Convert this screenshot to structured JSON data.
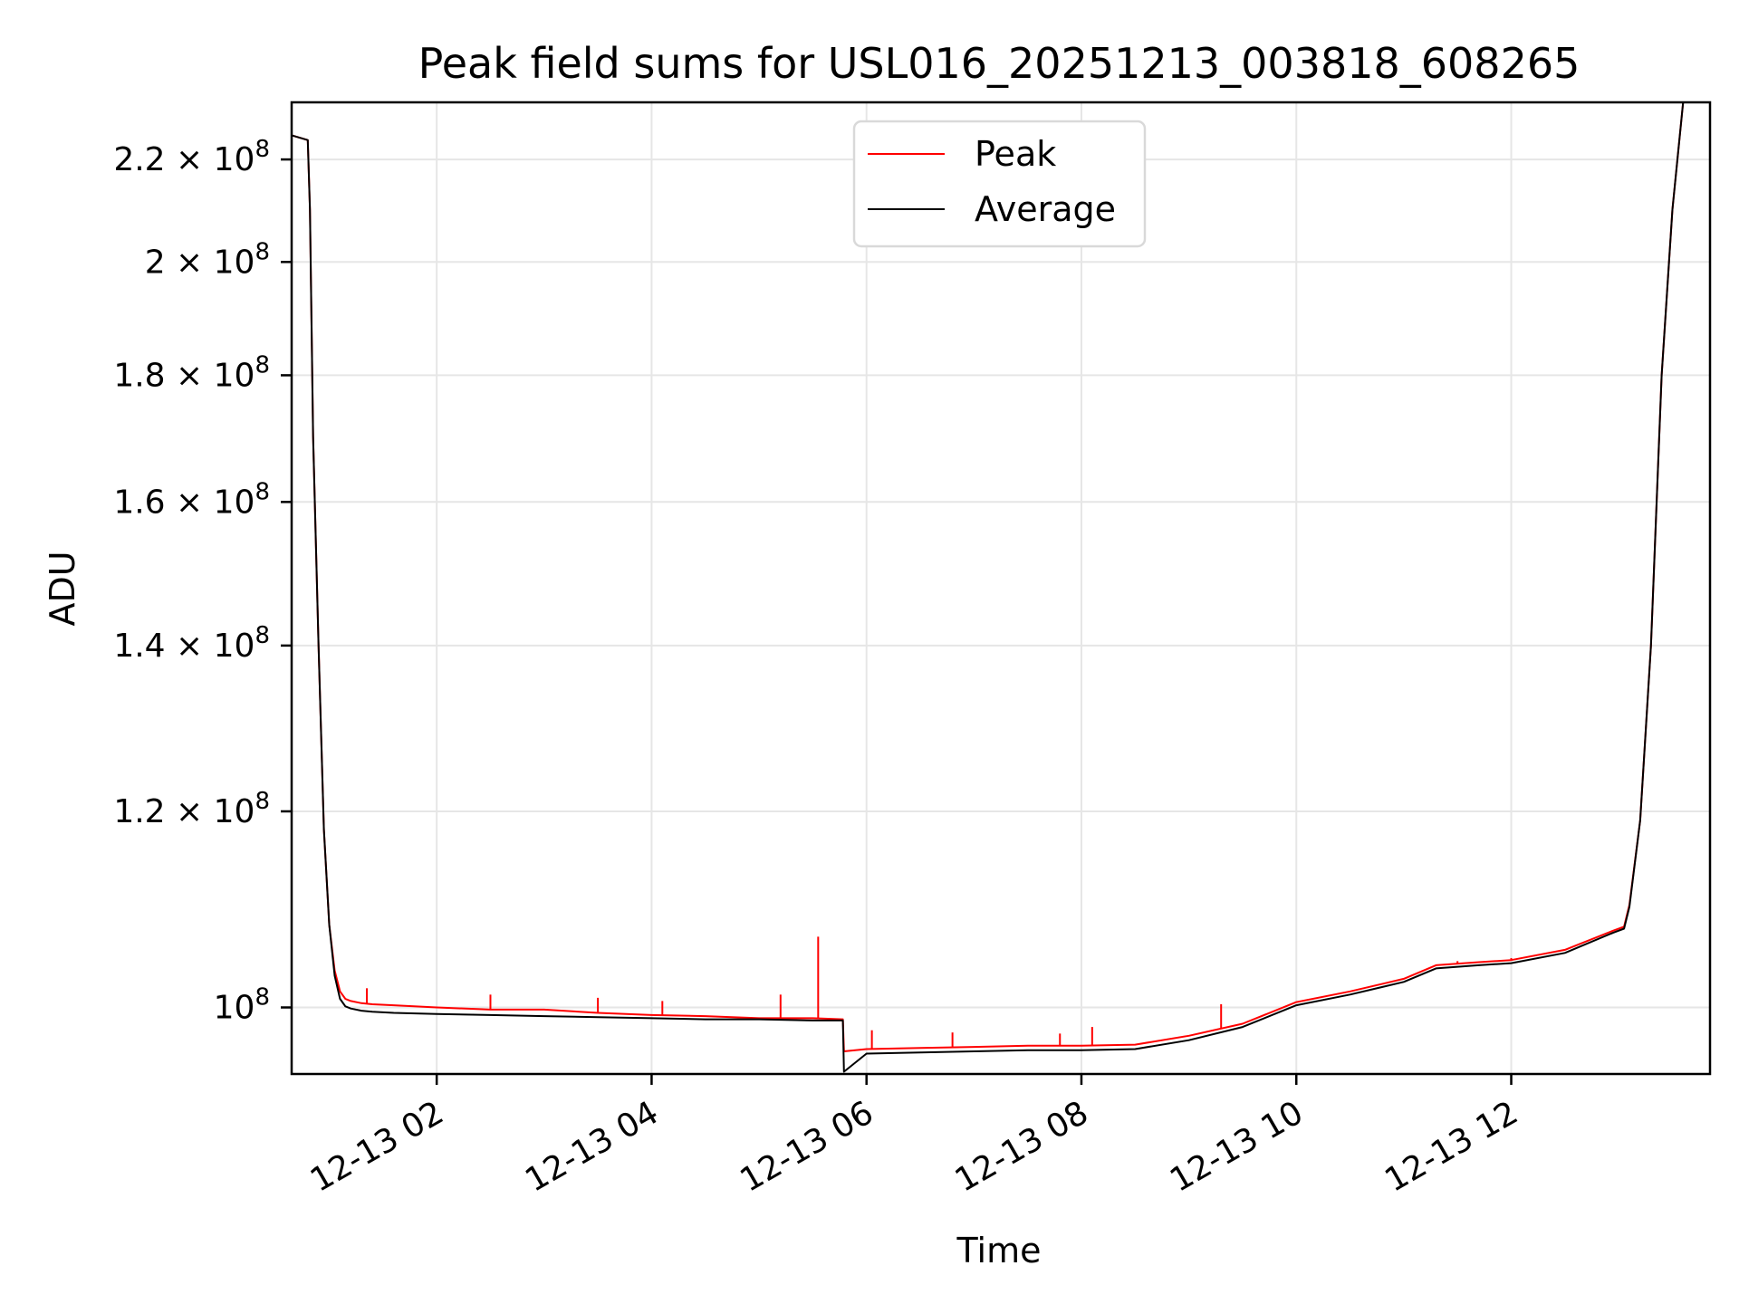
{
  "chart_data": {
    "type": "line",
    "title": "Peak field sums for USL016_20251213_003818_608265",
    "xlabel": "Time",
    "ylabel": "ADU",
    "yscale": "log",
    "ylim": [
      94000000,
      232000000
    ],
    "xlim_hours": [
      0.65,
      13.85
    ],
    "grid": true,
    "legend_position": "upper center",
    "x_ticks": [
      {
        "hour": 2,
        "label": "12-13 02"
      },
      {
        "hour": 4,
        "label": "12-13 04"
      },
      {
        "hour": 6,
        "label": "12-13 06"
      },
      {
        "hour": 8,
        "label": "12-13 08"
      },
      {
        "hour": 10,
        "label": "12-13 10"
      },
      {
        "hour": 12,
        "label": "12-13 12"
      }
    ],
    "y_ticks": [
      {
        "value": 100000000,
        "mantissa": "",
        "base": "10",
        "exp": "8"
      },
      {
        "value": 120000000,
        "mantissa": "1.2",
        "base": "10",
        "exp": "8"
      },
      {
        "value": 140000000,
        "mantissa": "1.4",
        "base": "10",
        "exp": "8"
      },
      {
        "value": 160000000,
        "mantissa": "1.6",
        "base": "10",
        "exp": "8"
      },
      {
        "value": 180000000,
        "mantissa": "1.8",
        "base": "10",
        "exp": "8"
      },
      {
        "value": 200000000,
        "mantissa": "2",
        "base": "10",
        "exp": "8"
      },
      {
        "value": 220000000,
        "mantissa": "2.2",
        "base": "10",
        "exp": "8"
      }
    ],
    "series": [
      {
        "name": "Peak",
        "color": "#ff0000",
        "x": [
          0.65,
          0.8,
          0.82,
          0.85,
          0.9,
          0.95,
          1.0,
          1.05,
          1.1,
          1.15,
          1.2,
          1.3,
          1.4,
          1.6,
          2.0,
          2.5,
          3.0,
          3.5,
          4.0,
          4.5,
          5.0,
          5.5,
          5.78,
          5.79,
          6.0,
          6.5,
          7.0,
          7.5,
          8.0,
          8.5,
          9.0,
          9.5,
          10.0,
          10.5,
          11.0,
          11.3,
          11.7,
          12.0,
          12.5,
          12.95,
          13.05,
          13.1,
          13.2,
          13.3,
          13.4,
          13.5,
          13.6
        ],
        "y": [
          225000000,
          224000000,
          210000000,
          170000000,
          140000000,
          118000000,
          108000000,
          103500000,
          101500000,
          100800000,
          100600000,
          100400000,
          100300000,
          100200000,
          100000000,
          99800000,
          99800000,
          99500000,
          99300000,
          99200000,
          99000000,
          99000000,
          98900000,
          96000000,
          96200000,
          96300000,
          96400000,
          96500000,
          96500000,
          96600000,
          97400000,
          98500000,
          100500000,
          101500000,
          102700000,
          104000000,
          104300000,
          104500000,
          105500000,
          107400000,
          107800000,
          110000000,
          119000000,
          140000000,
          180000000,
          210000000,
          232000000
        ]
      },
      {
        "name": "Average",
        "color": "#000000",
        "x": [
          0.65,
          0.8,
          0.82,
          0.85,
          0.9,
          0.95,
          1.0,
          1.05,
          1.1,
          1.15,
          1.2,
          1.3,
          1.4,
          1.6,
          2.0,
          2.5,
          3.0,
          3.5,
          4.0,
          4.5,
          5.0,
          5.5,
          5.78,
          5.79,
          6.0,
          6.5,
          7.0,
          7.5,
          8.0,
          8.5,
          9.0,
          9.5,
          10.0,
          10.5,
          11.0,
          11.3,
          11.7,
          12.0,
          12.5,
          12.95,
          13.05,
          13.1,
          13.2,
          13.3,
          13.4,
          13.5,
          13.6
        ],
        "y": [
          225000000,
          224000000,
          210000000,
          170000000,
          140000000,
          118000000,
          108000000,
          103000000,
          100800000,
          100100000,
          99900000,
          99700000,
          99600000,
          99500000,
          99400000,
          99300000,
          99200000,
          99100000,
          99000000,
          98900000,
          98900000,
          98800000,
          98800000,
          94200000,
          95800000,
          95900000,
          96000000,
          96100000,
          96100000,
          96200000,
          97000000,
          98200000,
          100200000,
          101200000,
          102400000,
          103700000,
          104000000,
          104200000,
          105200000,
          107200000,
          107600000,
          109800000,
          119000000,
          140000000,
          180000000,
          210000000,
          232000000
        ]
      }
    ],
    "spikes": [
      {
        "series": "Peak",
        "x": 1.35,
        "y": 101800000
      },
      {
        "series": "Peak",
        "x": 2.5,
        "y": 101200000
      },
      {
        "series": "Peak",
        "x": 3.5,
        "y": 100900000
      },
      {
        "series": "Peak",
        "x": 4.1,
        "y": 100600000
      },
      {
        "series": "Peak",
        "x": 5.2,
        "y": 101200000
      },
      {
        "series": "Peak",
        "x": 5.55,
        "y": 106800000
      },
      {
        "series": "Peak",
        "x": 6.05,
        "y": 97900000
      },
      {
        "series": "Peak",
        "x": 6.8,
        "y": 97700000
      },
      {
        "series": "Peak",
        "x": 7.8,
        "y": 97600000
      },
      {
        "series": "Peak",
        "x": 8.1,
        "y": 98200000
      },
      {
        "series": "Peak",
        "x": 9.3,
        "y": 100300000
      },
      {
        "series": "Peak",
        "x": 11.5,
        "y": 104400000
      },
      {
        "series": "Peak",
        "x": 12.0,
        "y": 104700000
      }
    ]
  },
  "legend": {
    "items": [
      {
        "label": "Peak",
        "color": "#ff0000"
      },
      {
        "label": "Average",
        "color": "#000000"
      }
    ]
  }
}
